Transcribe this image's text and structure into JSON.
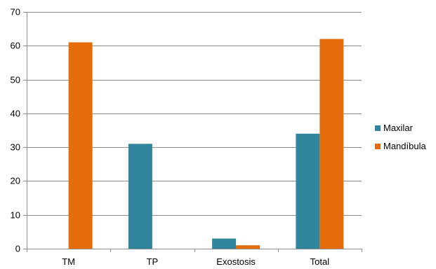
{
  "chart_data": {
    "type": "bar",
    "categories": [
      "TM",
      "TP",
      "Exostosis",
      "Total"
    ],
    "series": [
      {
        "name": "Maxilar",
        "values": [
          0,
          31,
          3,
          34
        ],
        "color": "#31859c"
      },
      {
        "name": "Mandíbula",
        "values": [
          61,
          0,
          1,
          62
        ],
        "color": "#e46c0a"
      }
    ],
    "ylim": [
      0,
      70
    ],
    "yticks": [
      0,
      10,
      20,
      30,
      40,
      50,
      60,
      70
    ],
    "grid": true,
    "legend_position": "right"
  }
}
